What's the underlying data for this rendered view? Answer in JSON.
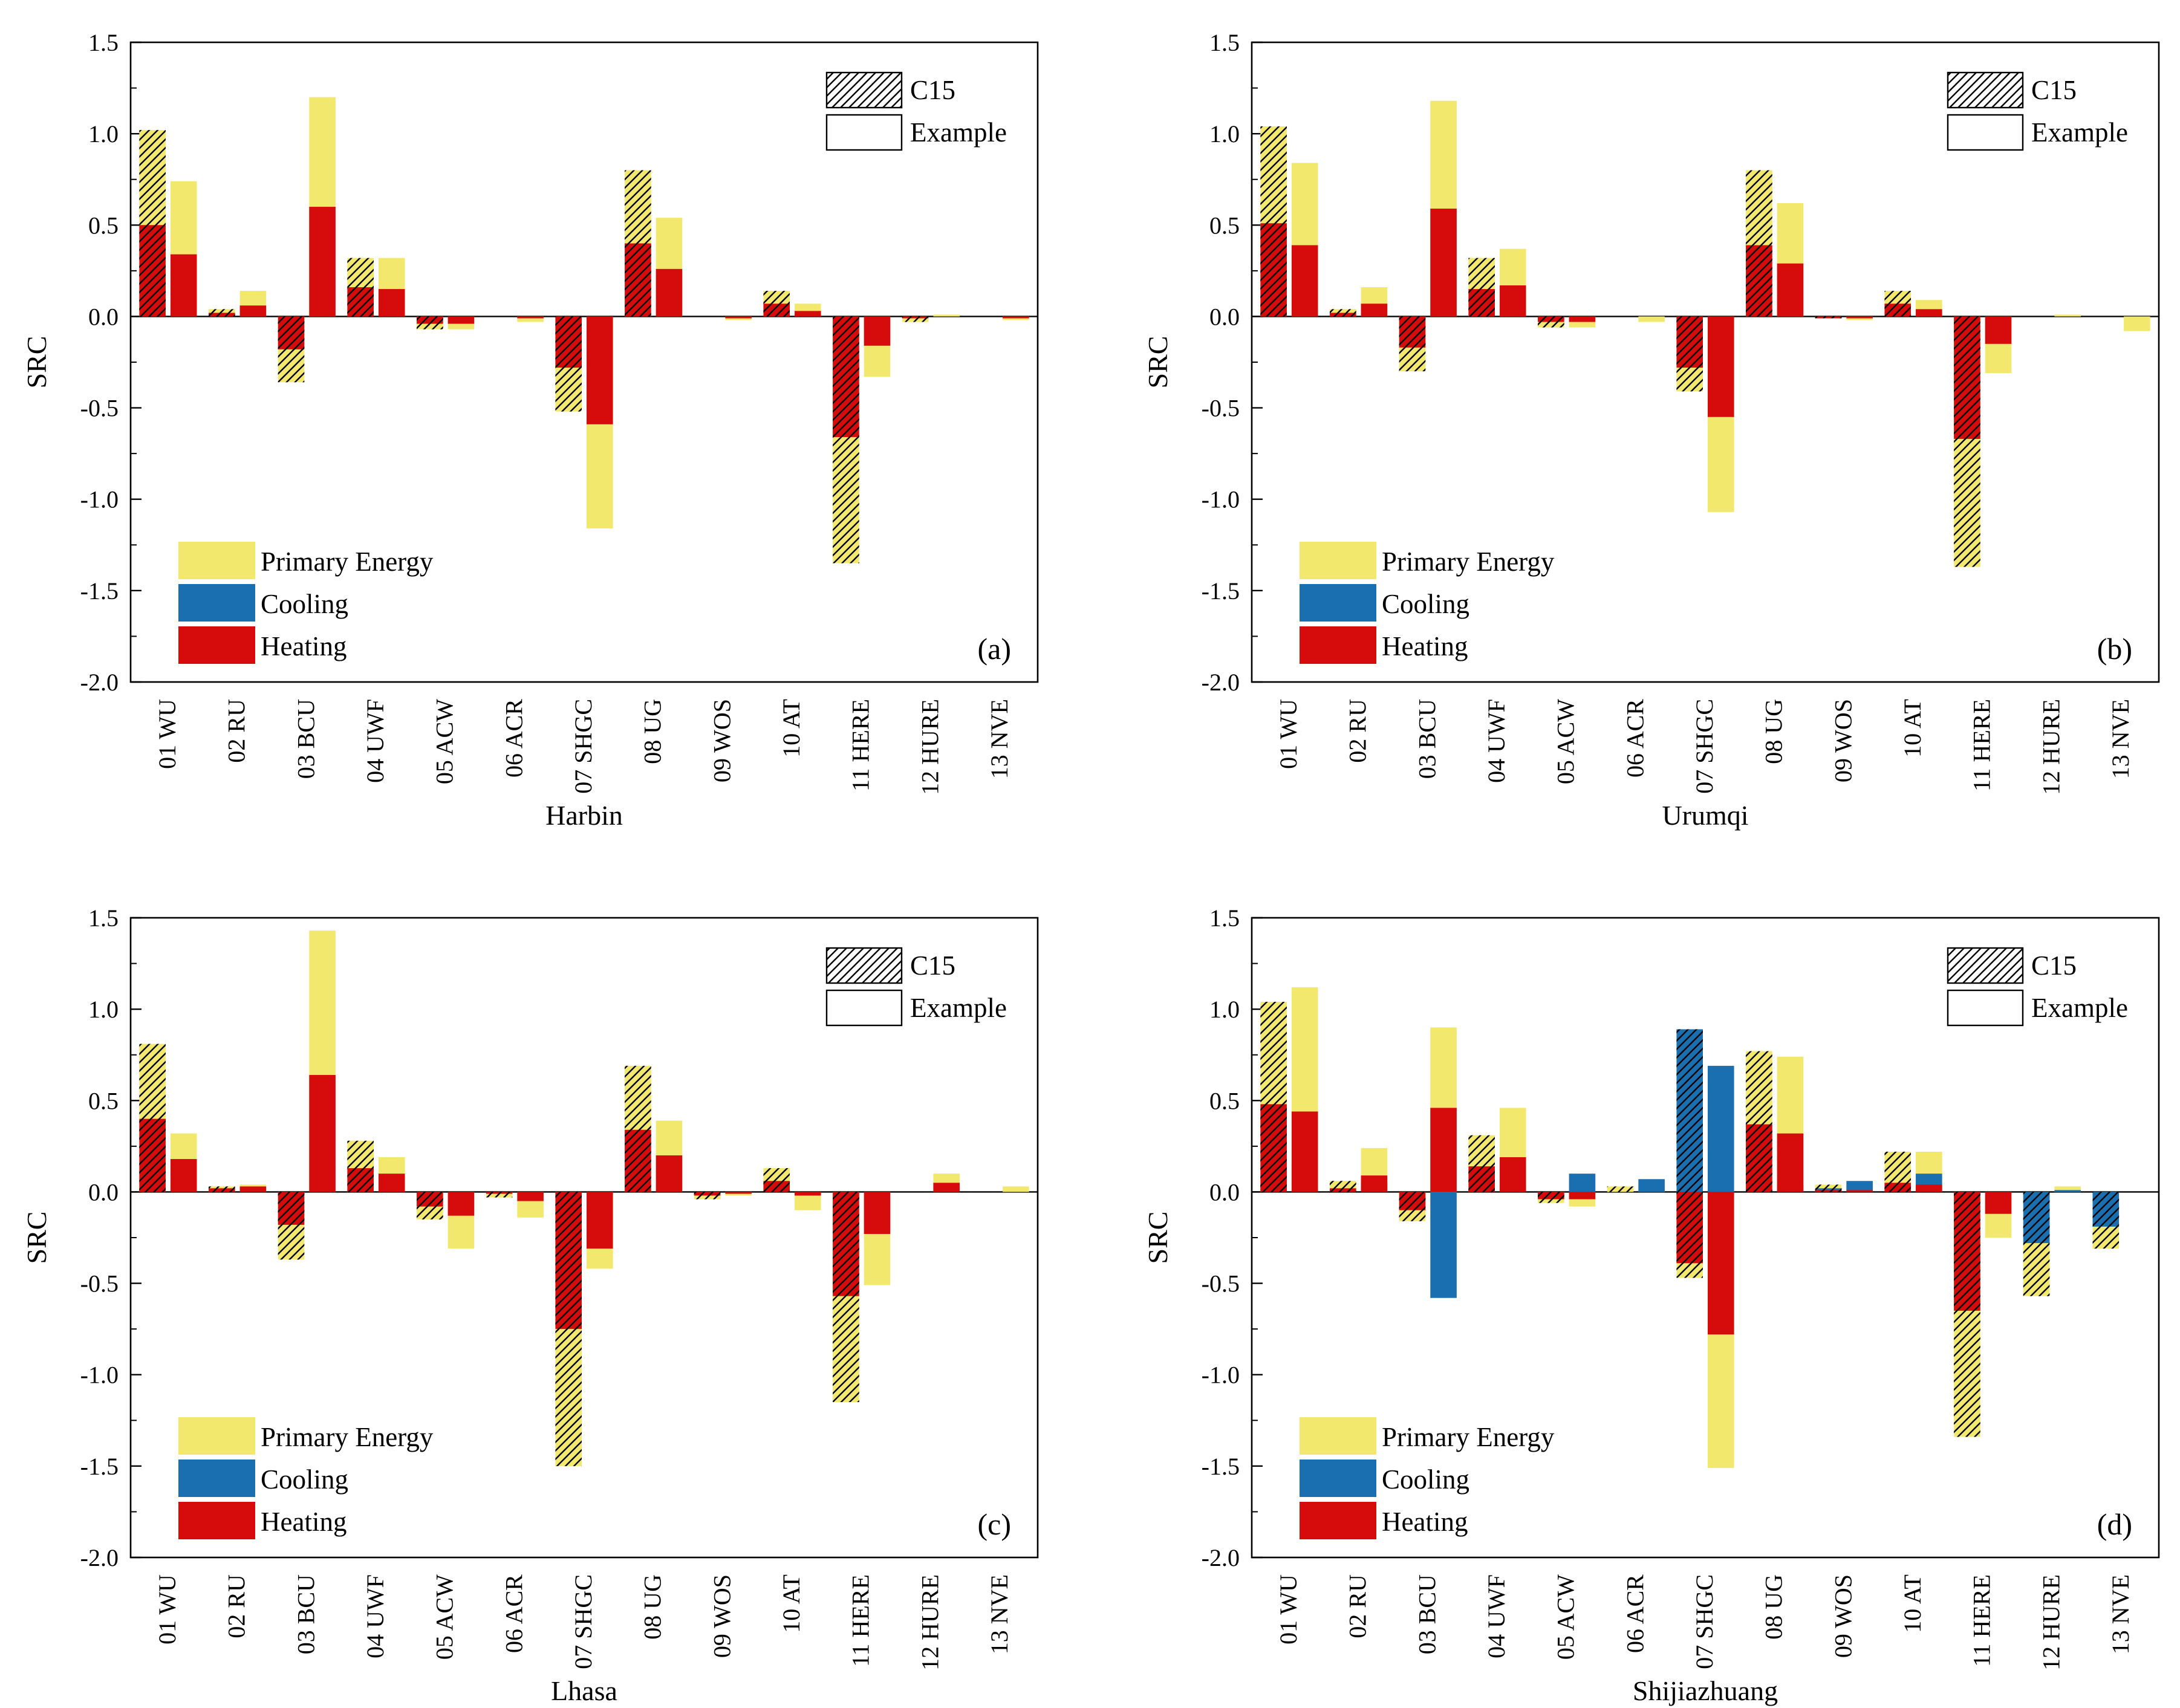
{
  "figure": {
    "legend": {
      "pattern_items": [
        {
          "key": "c15",
          "label": "C15"
        },
        {
          "key": "example",
          "label": "Example"
        }
      ],
      "color_items": [
        {
          "key": "primary",
          "label": "Primary Energy",
          "color": "#f2e86d"
        },
        {
          "key": "cooling",
          "label": "Cooling",
          "color": "#1a6fb0"
        },
        {
          "key": "heating",
          "label": "Heating",
          "color": "#d60c0c"
        }
      ]
    },
    "categories": [
      "01 WU",
      "02 RU",
      "03 BCU",
      "04 UWF",
      "05 ACW",
      "06 ACR",
      "07 SHGC",
      "08 UG",
      "09 WOS",
      "10 AT",
      "11 HERE",
      "12 HURE",
      "13 NVE"
    ]
  },
  "chart_data": [
    {
      "type": "bar",
      "panel": "(a)",
      "xlabel": "Harbin",
      "ylabel": "SRC",
      "ylim": [
        -2.0,
        1.5
      ],
      "yticks": [
        "1.5",
        "1.0",
        "0.5",
        "0.0",
        "-0.5",
        "-1.0",
        "-1.5",
        "-2.0"
      ],
      "categories": [
        "01 WU",
        "02 RU",
        "03 BCU",
        "04 UWF",
        "05 ACW",
        "06 ACR",
        "07 SHGC",
        "08 UG",
        "09 WOS",
        "10 AT",
        "11 HERE",
        "12 HURE",
        "13 NVE"
      ],
      "series": [
        {
          "name": "C15",
          "primary": [
            1.02,
            0.04,
            -0.36,
            0.32,
            -0.07,
            0.0,
            -0.52,
            0.8,
            0.0,
            0.14,
            -1.35,
            -0.03,
            0.0
          ],
          "heating": [
            0.5,
            0.02,
            -0.18,
            0.16,
            -0.04,
            0.0,
            -0.28,
            0.4,
            0.0,
            0.07,
            -0.66,
            -0.01,
            0.0
          ],
          "cooling": [
            0,
            0,
            0,
            0,
            0,
            0,
            0,
            0,
            0,
            0,
            0,
            0,
            0
          ]
        },
        {
          "name": "Example",
          "primary": [
            0.74,
            0.14,
            1.2,
            0.32,
            -0.07,
            -0.03,
            -1.16,
            0.54,
            -0.02,
            0.07,
            -0.33,
            0.01,
            -0.02
          ],
          "heating": [
            0.34,
            0.06,
            0.6,
            0.15,
            -0.04,
            -0.01,
            -0.59,
            0.26,
            -0.01,
            0.03,
            -0.16,
            0.0,
            -0.01
          ],
          "cooling": [
            0,
            0,
            0,
            0,
            0,
            0,
            0,
            0,
            0,
            0,
            0,
            0,
            0
          ]
        }
      ]
    },
    {
      "type": "bar",
      "panel": "(b)",
      "xlabel": "Urumqi",
      "ylabel": "SRC",
      "ylim": [
        -2.0,
        1.5
      ],
      "yticks": [
        "1.5",
        "1.0",
        "0.5",
        "0.0",
        "-0.5",
        "-1.0",
        "-1.5",
        "-2.0"
      ],
      "categories": [
        "01 WU",
        "02 RU",
        "03 BCU",
        "04 UWF",
        "05 ACW",
        "06 ACR",
        "07 SHGC",
        "08 UG",
        "09 WOS",
        "10 AT",
        "11 HERE",
        "12 HURE",
        "13 NVE"
      ],
      "series": [
        {
          "name": "C15",
          "primary": [
            1.04,
            0.04,
            -0.3,
            0.32,
            -0.06,
            0.0,
            -0.41,
            0.8,
            -0.01,
            0.14,
            -1.37,
            0.0,
            0.0
          ],
          "heating": [
            0.51,
            0.02,
            -0.17,
            0.15,
            -0.03,
            0.0,
            -0.28,
            0.39,
            -0.01,
            0.07,
            -0.67,
            0.0,
            0.0
          ],
          "cooling": [
            0,
            0,
            0,
            0,
            0,
            0,
            0,
            0,
            0,
            0,
            0,
            0,
            0
          ]
        },
        {
          "name": "Example",
          "primary": [
            0.84,
            0.16,
            1.18,
            0.37,
            -0.06,
            -0.03,
            -1.07,
            0.62,
            -0.02,
            0.09,
            -0.31,
            0.01,
            -0.08
          ],
          "heating": [
            0.39,
            0.07,
            0.59,
            0.17,
            -0.03,
            0.0,
            -0.55,
            0.29,
            -0.01,
            0.04,
            -0.15,
            0.0,
            0.0
          ],
          "cooling": [
            0,
            0,
            0,
            0,
            0,
            0,
            0,
            0,
            0,
            0,
            0,
            0,
            0
          ]
        }
      ]
    },
    {
      "type": "bar",
      "panel": "(c)",
      "xlabel": "Lhasa",
      "ylabel": "SRC",
      "ylim": [
        -2.0,
        1.5
      ],
      "yticks": [
        "1.5",
        "1.0",
        "0.5",
        "0.0",
        "-0.5",
        "-1.0",
        "-1.5",
        "-2.0"
      ],
      "categories": [
        "01 WU",
        "02 RU",
        "03 BCU",
        "04 UWF",
        "05 ACW",
        "06 ACR",
        "07 SHGC",
        "08 UG",
        "09 WOS",
        "10 AT",
        "11 HERE",
        "12 HURE",
        "13 NVE"
      ],
      "series": [
        {
          "name": "C15",
          "primary": [
            0.81,
            0.03,
            -0.37,
            0.28,
            -0.15,
            -0.03,
            -1.5,
            0.69,
            -0.04,
            0.13,
            -1.15,
            0.0,
            0.0
          ],
          "heating": [
            0.4,
            0.02,
            -0.18,
            0.13,
            -0.08,
            -0.01,
            -0.75,
            0.34,
            -0.02,
            0.06,
            -0.57,
            0.0,
            0.0
          ],
          "cooling": [
            0,
            0,
            0,
            0,
            0,
            0,
            0,
            0,
            0,
            0,
            0,
            0,
            0
          ]
        },
        {
          "name": "Example",
          "primary": [
            0.32,
            0.04,
            1.43,
            0.19,
            -0.31,
            -0.14,
            -0.42,
            0.39,
            -0.02,
            -0.1,
            -0.51,
            0.1,
            0.03
          ],
          "heating": [
            0.18,
            0.03,
            0.64,
            0.1,
            -0.13,
            -0.05,
            -0.31,
            0.2,
            -0.01,
            -0.02,
            -0.23,
            0.05,
            0.0
          ],
          "cooling": [
            0,
            0,
            0,
            0,
            0,
            0,
            0,
            0,
            0,
            0,
            0,
            0,
            0
          ]
        }
      ]
    },
    {
      "type": "bar",
      "panel": "(d)",
      "xlabel": "Shijiazhuang",
      "ylabel": "SRC",
      "ylim": [
        -2.0,
        1.5
      ],
      "yticks": [
        "1.5",
        "1.0",
        "0.5",
        "0.0",
        "-0.5",
        "-1.0",
        "-1.5",
        "-2.0"
      ],
      "categories": [
        "01 WU",
        "02 RU",
        "03 BCU",
        "04 UWF",
        "05 ACW",
        "06 ACR",
        "07 SHGC",
        "08 UG",
        "09 WOS",
        "10 AT",
        "11 HERE",
        "12 HURE",
        "13 NVE"
      ],
      "series": [
        {
          "name": "C15",
          "primary": [
            1.04,
            0.06,
            -0.16,
            0.31,
            -0.06,
            0.03,
            -0.47,
            0.77,
            0.04,
            0.22,
            -1.34,
            -0.57,
            -0.31
          ],
          "heating": [
            0.48,
            0.02,
            -0.1,
            0.14,
            -0.04,
            0.0,
            -0.39,
            0.37,
            0.01,
            0.05,
            -0.65,
            0.0,
            0.0
          ],
          "cooling": [
            0.04,
            0.01,
            0.0,
            0.0,
            0.0,
            0.0,
            0.89,
            0.0,
            0.02,
            0.04,
            -0.02,
            -0.28,
            -0.19
          ]
        },
        {
          "name": "Example",
          "primary": [
            1.12,
            0.24,
            0.9,
            0.46,
            -0.08,
            0.02,
            -1.51,
            0.74,
            0.04,
            0.22,
            -0.25,
            0.03,
            0.0
          ],
          "heating": [
            0.44,
            0.09,
            0.46,
            0.19,
            -0.04,
            0.0,
            -0.78,
            0.32,
            0.01,
            0.04,
            -0.12,
            0.0,
            0.0
          ],
          "cooling": [
            0.15,
            0.05,
            -0.58,
            0.03,
            0.1,
            0.07,
            0.69,
            0.04,
            0.06,
            0.1,
            0.0,
            0.01,
            0.0
          ]
        }
      ]
    }
  ]
}
